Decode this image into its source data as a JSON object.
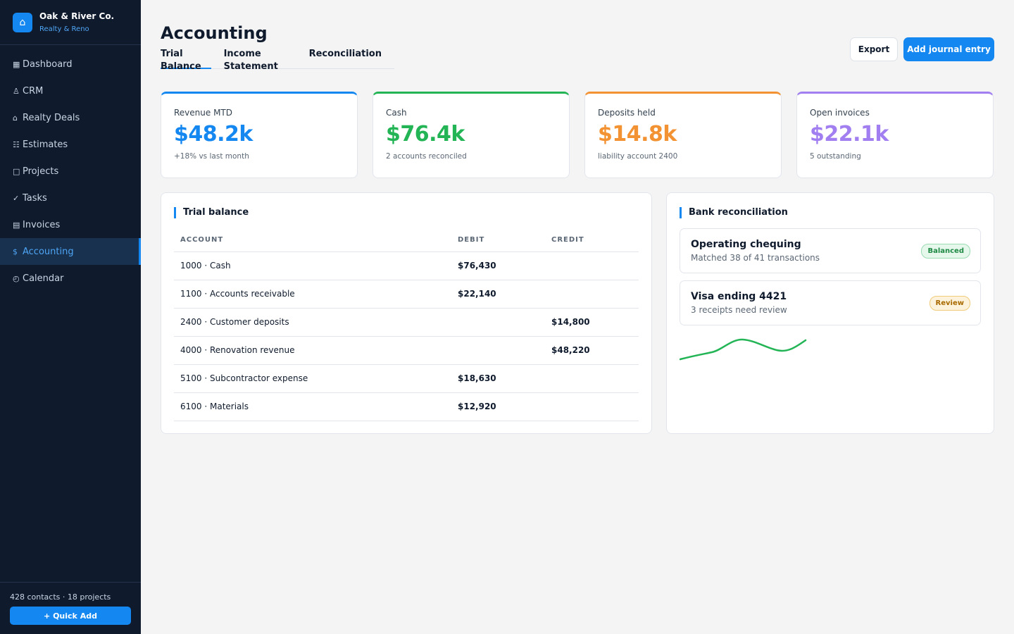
{
  "brand": {
    "logo_icon": "home-icon",
    "name": "Oak & River Co.",
    "subtitle": "Realty & Reno"
  },
  "nav": [
    {
      "icon": "dashboard-icon",
      "glyph": "▦",
      "label": "Dashboard"
    },
    {
      "icon": "crm-icon",
      "glyph": "♙",
      "label": "CRM"
    },
    {
      "icon": "house-icon",
      "glyph": "⌂",
      "label": "Realty Deals"
    },
    {
      "icon": "estimates-icon",
      "glyph": "☷",
      "label": "Estimates"
    },
    {
      "icon": "projects-icon",
      "glyph": "□",
      "label": "Projects"
    },
    {
      "icon": "check-icon",
      "glyph": "✓",
      "label": "Tasks"
    },
    {
      "icon": "invoice-icon",
      "glyph": "▤",
      "label": "Invoices"
    },
    {
      "icon": "dollar-icon",
      "glyph": "$",
      "label": "Accounting",
      "active": true
    },
    {
      "icon": "calendar-icon",
      "glyph": "◴",
      "label": "Calendar"
    }
  ],
  "sidebar_footer": {
    "stats": "428 contacts · 18 projects",
    "quick_add": "+ Quick Add"
  },
  "header": {
    "title": "Accounting",
    "tabs": [
      {
        "label": "Trial Balance",
        "active": true
      },
      {
        "label": "Income Statement"
      },
      {
        "label": "Reconciliation"
      }
    ],
    "export_label": "Export",
    "add_label": "Add journal entry"
  },
  "kpis": [
    {
      "label": "Revenue MTD",
      "value": "$48.2k",
      "sub": "+18% vs last month",
      "color": "#1487f0"
    },
    {
      "label": "Cash",
      "value": "$76.4k",
      "sub": "2 accounts reconciled",
      "color": "#22b455"
    },
    {
      "label": "Deposits held",
      "value": "$14.8k",
      "sub": "liability account 2400",
      "color": "#f39232"
    },
    {
      "label": "Open invoices",
      "value": "$22.1k",
      "sub": "5 outstanding",
      "color": "#a27ff0"
    }
  ],
  "trial_balance": {
    "title": "Trial balance",
    "columns": [
      "ACCOUNT",
      "DEBIT",
      "CREDIT"
    ],
    "rows": [
      {
        "account": "1000 · Cash",
        "debit": "$76,430",
        "credit": ""
      },
      {
        "account": "1100 · Accounts receivable",
        "debit": "$22,140",
        "credit": ""
      },
      {
        "account": "2400 · Customer deposits",
        "debit": "",
        "credit": "$14,800"
      },
      {
        "account": "4000 · Renovation revenue",
        "debit": "",
        "credit": "$48,220"
      },
      {
        "account": "5100 · Subcontractor expense",
        "debit": "$18,630",
        "credit": ""
      },
      {
        "account": "6100 · Materials",
        "debit": "$12,920",
        "credit": ""
      }
    ]
  },
  "bank_reconciliation": {
    "title": "Bank reconciliation",
    "accounts": [
      {
        "name": "Operating chequing",
        "desc": "Matched 38 of 41 transactions",
        "badge": "Balanced",
        "badge_color": "green"
      },
      {
        "name": "Visa ending 4421",
        "desc": "3 receipts need review",
        "badge": "Review",
        "badge_color": "amber"
      }
    ],
    "sparkline_color": "#22b455"
  }
}
